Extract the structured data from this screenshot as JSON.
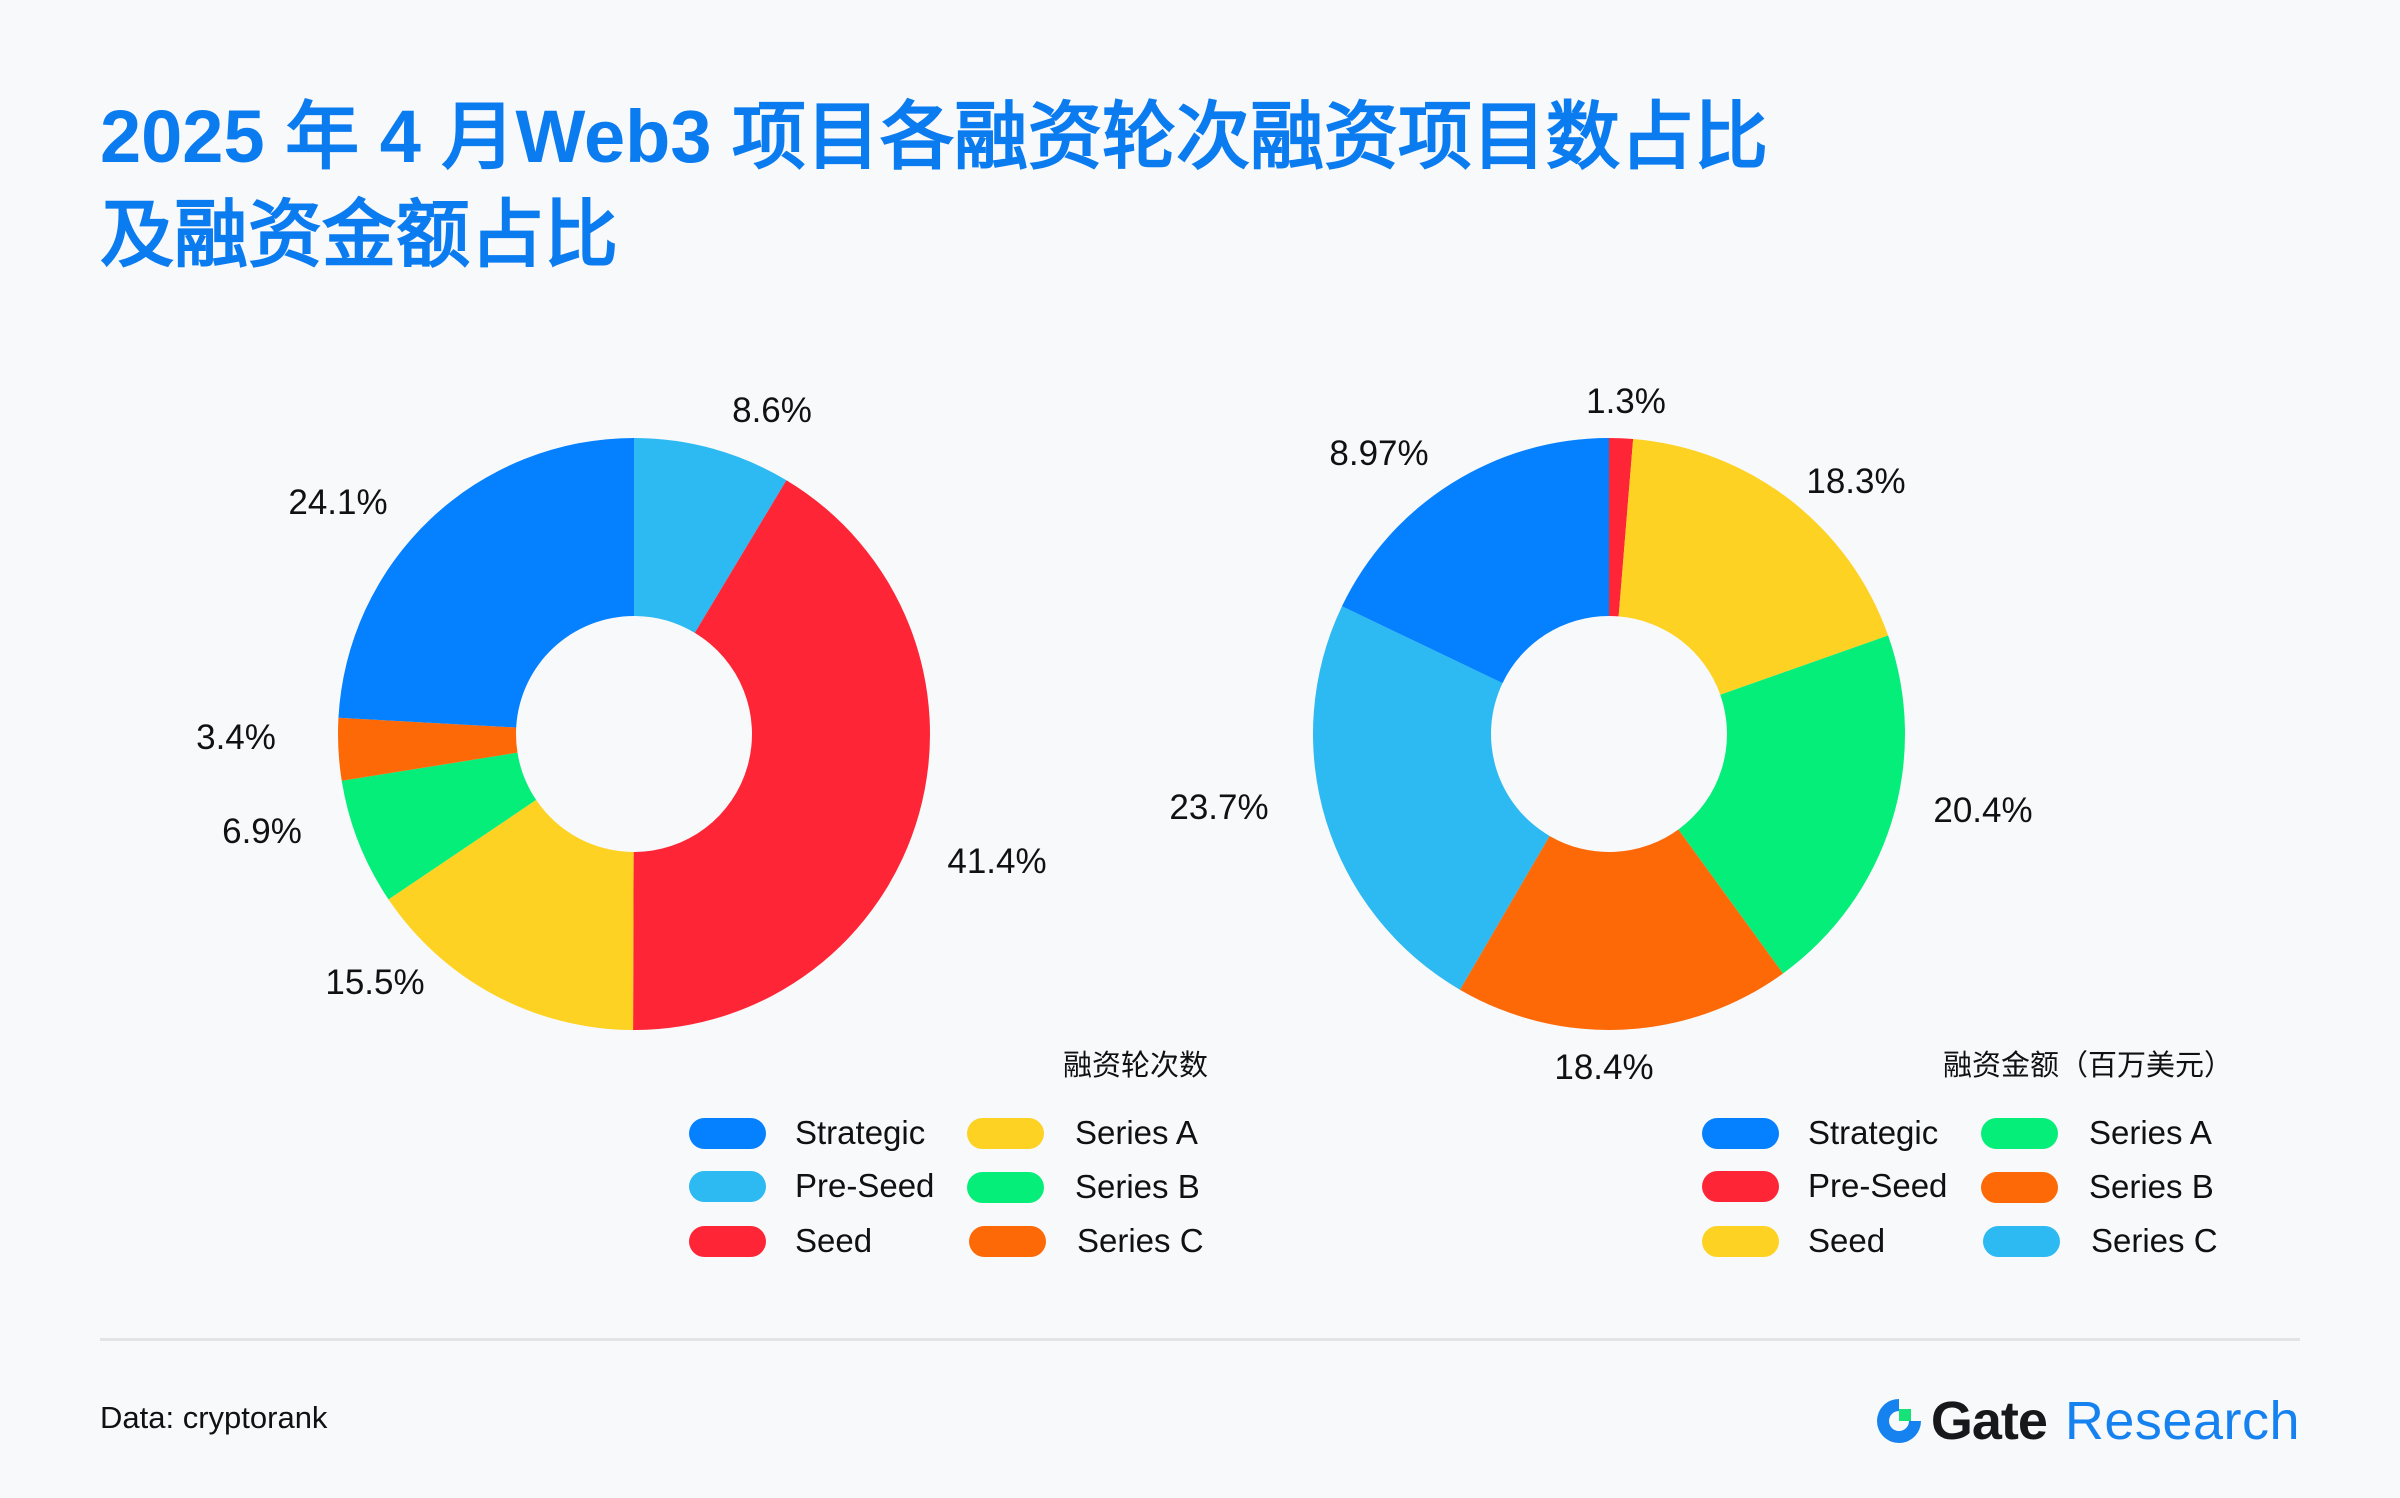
{
  "title": {
    "line1": "2025 年 4 月Web3 项目各融资轮次融资项目数占比",
    "line2": "及融资金额占比",
    "color": "#0B7BF0"
  },
  "chart_data": [
    {
      "type": "pie",
      "variant": "donut",
      "title": "融资轮次数",
      "categories": [
        "Pre-Seed",
        "Seed",
        "Series A",
        "Series B",
        "Series C",
        "Strategic"
      ],
      "values": [
        8.6,
        41.4,
        15.5,
        6.9,
        3.4,
        24.1
      ],
      "labels": [
        "8.6%",
        "41.4%",
        "15.5%",
        "6.9%",
        "3.4%",
        "24.1%"
      ],
      "unit": "%",
      "start_angle_deg": 0,
      "direction": "clockwise",
      "colors": {
        "Strategic": "#0580FE",
        "Pre-Seed": "#2DB9F1",
        "Seed": "#FE2636",
        "Series A": "#FED222",
        "Series B": "#06EE7A",
        "Series C": "#FD6906"
      },
      "legend": {
        "position": "bottom-right",
        "items": [
          "Strategic",
          "Pre-Seed",
          "Seed",
          "Series A",
          "Series B",
          "Series C"
        ]
      }
    },
    {
      "type": "pie",
      "variant": "donut",
      "title": "融资金额（百万美元）",
      "categories": [
        "Pre-Seed",
        "Seed",
        "Series A",
        "Series B",
        "Series C",
        "Strategic"
      ],
      "values": [
        1.3,
        18.3,
        20.4,
        18.4,
        23.7,
        8.97
      ],
      "labels": [
        "1.3%",
        "18.3%",
        "20.4%",
        "18.4%",
        "23.7%",
        "8.97%"
      ],
      "unit": "%",
      "start_angle_deg": 0,
      "direction": "clockwise",
      "colors": {
        "Strategic": "#0580FE",
        "Pre-Seed": "#FE2636",
        "Seed": "#FED222",
        "Series A": "#06EE7A",
        "Series B": "#FD6906",
        "Series C": "#2DB9F1"
      },
      "legend": {
        "position": "bottom-right",
        "items": [
          "Strategic",
          "Pre-Seed",
          "Seed",
          "Series A",
          "Series B",
          "Series C"
        ]
      }
    }
  ],
  "charts": {
    "left": {
      "legend_title": "融资轮次数",
      "legend": [
        {
          "label": "Strategic",
          "color": "#0580FE"
        },
        {
          "label": "Pre-Seed",
          "color": "#2DB9F1"
        },
        {
          "label": "Seed",
          "color": "#FE2636"
        },
        {
          "label": "Series A",
          "color": "#FED222"
        },
        {
          "label": "Series B",
          "color": "#06EE7A"
        },
        {
          "label": "Series C",
          "color": "#FD6906"
        }
      ],
      "labels": {
        "pre_seed": "8.6%",
        "seed": "41.4%",
        "series_a": "15.5%",
        "series_b": "6.9%",
        "series_c": "3.4%",
        "strategic": "24.1%"
      }
    },
    "right": {
      "legend_title": "融资金额（百万美元）",
      "legend": [
        {
          "label": "Strategic",
          "color": "#0580FE"
        },
        {
          "label": "Pre-Seed",
          "color": "#FE2636"
        },
        {
          "label": "Seed",
          "color": "#FED222"
        },
        {
          "label": "Series A",
          "color": "#06EE7A"
        },
        {
          "label": "Series B",
          "color": "#FD6906"
        },
        {
          "label": "Series C",
          "color": "#2DB9F1"
        }
      ],
      "labels": {
        "pre_seed": "1.3%",
        "seed": "18.3%",
        "series_a": "20.4%",
        "series_b": "18.4%",
        "series_c": "23.7%",
        "strategic": "8.97%"
      }
    }
  },
  "footer": {
    "source": "Data: cryptorank",
    "brand_gate": "Gate",
    "brand_research": "Research"
  }
}
